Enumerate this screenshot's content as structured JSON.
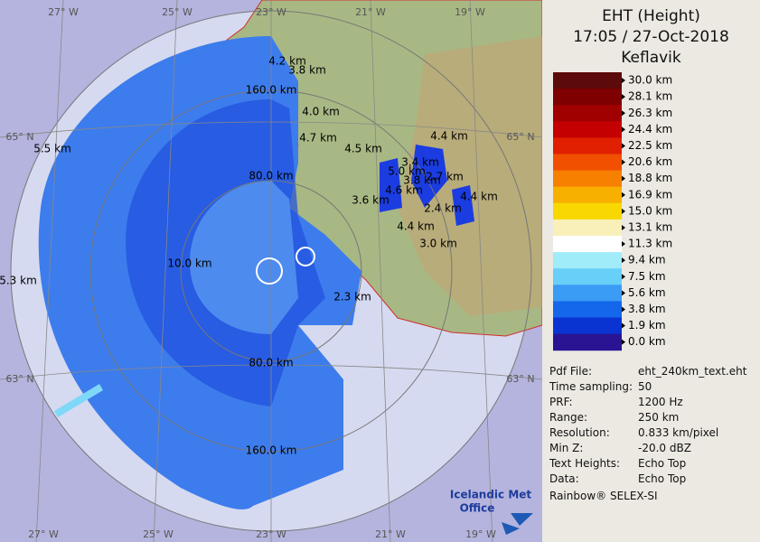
{
  "header": {
    "title": "EHT (Height)",
    "time": "17:05 / 27-Oct-2018",
    "station": "Keflavik"
  },
  "scale": {
    "labels": [
      "30.0 km",
      "28.1 km",
      "26.3 km",
      "24.4 km",
      "22.5 km",
      "20.6 km",
      "18.8 km",
      "16.9 km",
      "15.0 km",
      "13.1 km",
      "11.3 km",
      "9.4 km",
      "7.5 km",
      "5.6 km",
      "3.8 km",
      "1.9 km",
      "0.0 km"
    ],
    "colors": [
      "#5c0a0a",
      "#7e0000",
      "#a00000",
      "#c40000",
      "#e02000",
      "#f05000",
      "#f88000",
      "#f8b000",
      "#f8d800",
      "#f8f0b8",
      "#ffffff",
      "#a0ecf8",
      "#68cff8",
      "#3a9cf4",
      "#1466ea",
      "#0a34d2",
      "#2a1494"
    ]
  },
  "info": [
    [
      "Pdf File:",
      "eht_240km_text.eht"
    ],
    [
      "Time sampling:",
      "50"
    ],
    [
      "PRF:",
      "1200 Hz"
    ],
    [
      "Range:",
      "250 km"
    ],
    [
      "Resolution:",
      "0.833 km/pixel"
    ],
    [
      "Min Z:",
      "-20.0 dBZ"
    ],
    [
      "Text Heights:",
      "Echo Top"
    ],
    [
      "Data:",
      "Echo Top"
    ]
  ],
  "footer": "Rainbow® SELEX-SI",
  "logo": [
    "Icelandic Met",
    "Office"
  ],
  "grid_labels": [
    "27° W",
    "25° W",
    "23° W",
    "21° W",
    "19° W",
    "27° W",
    "25° W",
    "23° W",
    "21° W",
    "19° W",
    "65° N",
    "65° N",
    "63° N",
    "63° N"
  ],
  "map_labels": [
    "4.2 km",
    "3.8 km",
    "160.0 km",
    "4.0 km",
    "4.7 km",
    "4.5 km",
    "4.4 km",
    "5.5 km",
    "3.4 km",
    "5.0 km",
    "3.8 km",
    "80.0 km",
    "4.6 km",
    "2.7 km",
    "3.6 km",
    "4.4 km",
    "2.4 km",
    "4.4 km",
    "3.0 km",
    "10.0 km",
    "5.3 km",
    "2.3 km",
    "80.0 km",
    "160.0 km"
  ]
}
